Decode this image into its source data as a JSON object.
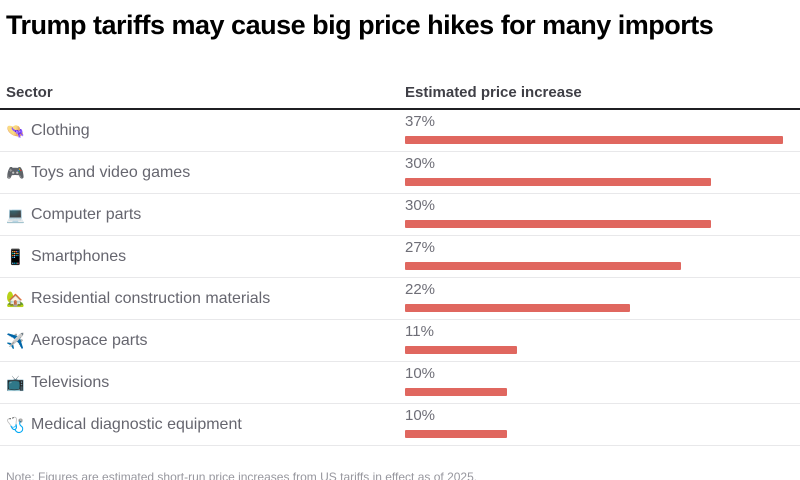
{
  "title": "Trump tariffs may cause big price hikes for many imports",
  "table": {
    "col1_header": "Sector",
    "col2_header": "Estimated price increase",
    "rows": [
      {
        "icon": "👒",
        "icon_name": "clothing-icon",
        "label": "Clothing",
        "value": 37,
        "value_label": "37%"
      },
      {
        "icon": "🎮",
        "icon_name": "game-controller-icon",
        "label": "Toys and video games",
        "value": 30,
        "value_label": "30%"
      },
      {
        "icon": "💻",
        "icon_name": "laptop-icon",
        "label": "Computer parts",
        "value": 30,
        "value_label": "30%"
      },
      {
        "icon": "📱",
        "icon_name": "smartphone-icon",
        "label": "Smartphones",
        "value": 27,
        "value_label": "27%"
      },
      {
        "icon": "🏡",
        "icon_name": "house-icon",
        "label": "Residential construction materials",
        "value": 22,
        "value_label": "22%"
      },
      {
        "icon": "✈️",
        "icon_name": "airplane-icon",
        "label": "Aerospace parts",
        "value": 11,
        "value_label": "11%"
      },
      {
        "icon": "📺",
        "icon_name": "television-icon",
        "label": "Televisions",
        "value": 10,
        "value_label": "10%"
      },
      {
        "icon": "🩺",
        "icon_name": "stethoscope-icon",
        "label": "Medical diagnostic equipment",
        "value": 10,
        "value_label": "10%"
      }
    ]
  },
  "note": "Note: Figures are estimated short-run price increases from US tariffs in effect as of 2025.",
  "colors": {
    "bar": "#e0675f",
    "title_text": "#000000",
    "header_text": "#3f3f46",
    "label_text": "#66666f",
    "divider": "#e8e8ea",
    "header_rule": "#1f1f23"
  },
  "chart_data": {
    "type": "bar",
    "orientation": "horizontal",
    "title": "Trump tariffs may cause big price hikes for many imports",
    "categories": [
      "Clothing",
      "Toys and video games",
      "Computer parts",
      "Smartphones",
      "Residential construction materials",
      "Aerospace parts",
      "Televisions",
      "Medical diagnostic equipment"
    ],
    "values": [
      37,
      30,
      30,
      27,
      22,
      11,
      10,
      10
    ],
    "value_labels": [
      "37%",
      "30%",
      "30%",
      "27%",
      "22%",
      "11%",
      "10%",
      "10%"
    ],
    "xlabel": "Estimated price increase",
    "ylabel": "Sector",
    "xlim": [
      0,
      37
    ],
    "grid": false,
    "legend": false,
    "bar_color": "#e0675f",
    "unit": "percent"
  }
}
